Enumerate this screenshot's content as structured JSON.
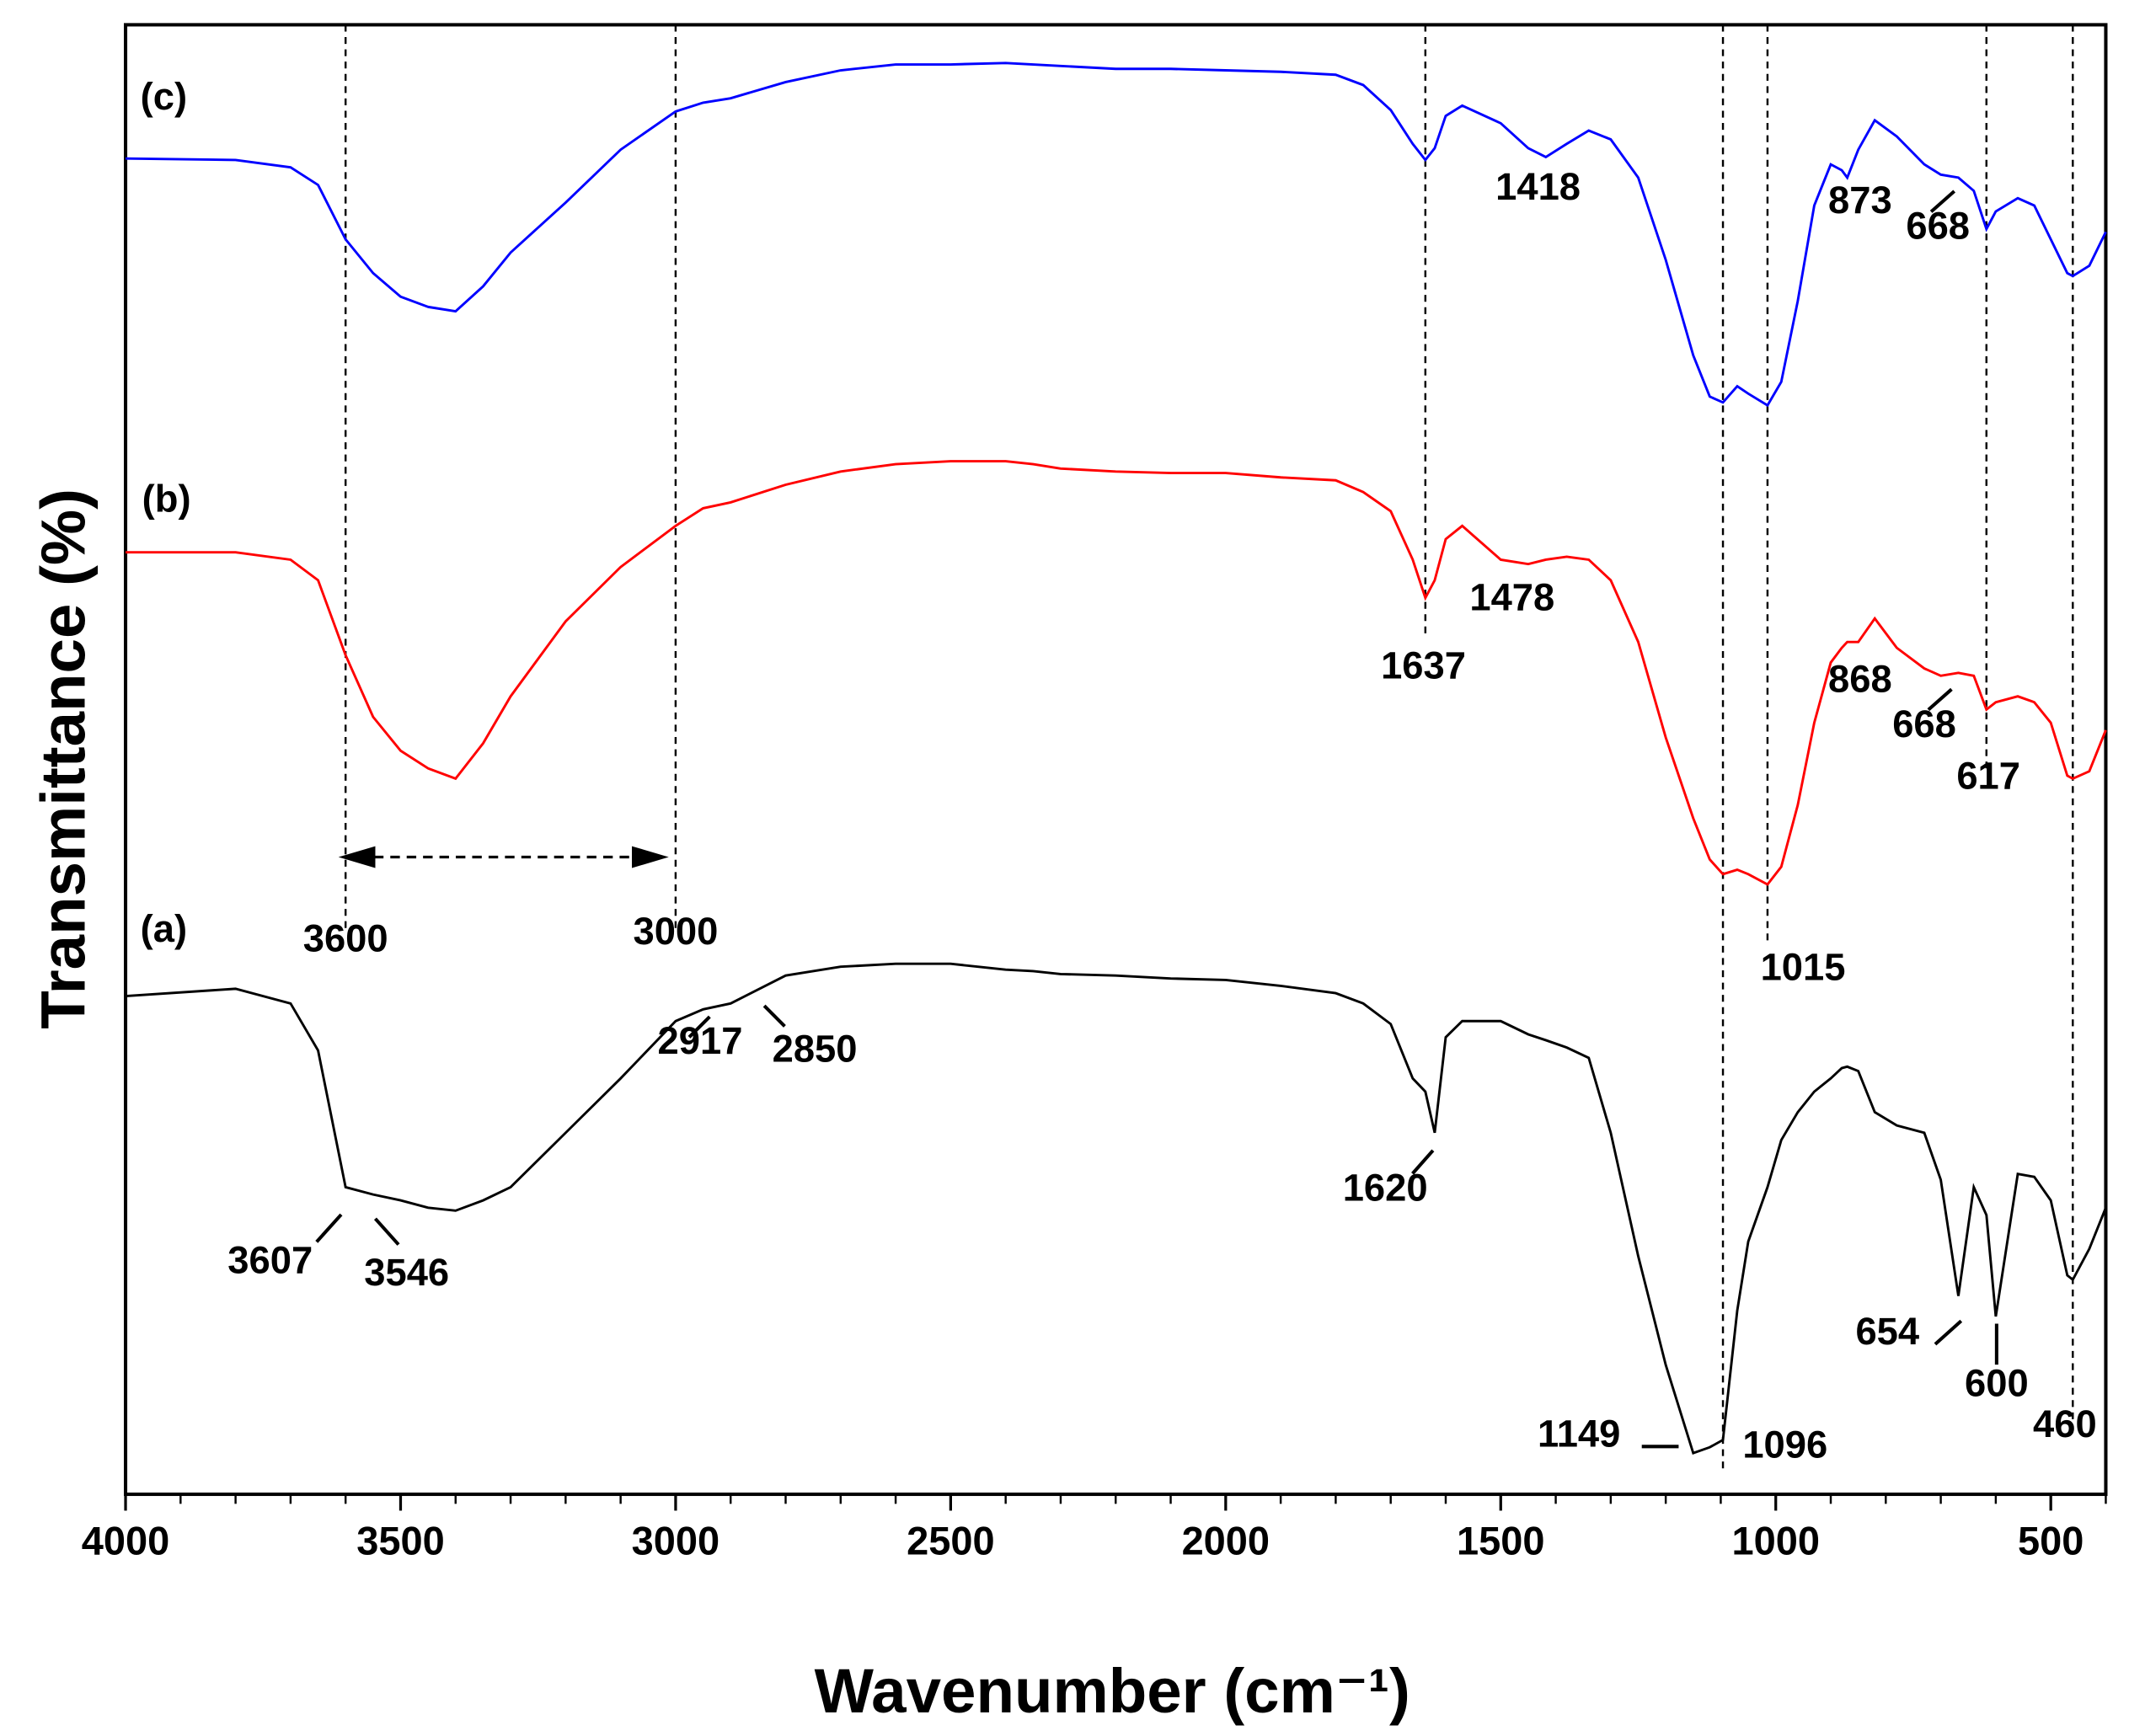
{
  "chart_data": {
    "type": "line",
    "xlabel": "Wavenumber (cm⁻¹)",
    "ylabel": "Transmittance (%)",
    "xlim": [
      4000,
      400
    ],
    "ylim": [
      0,
      100
    ],
    "xticks": [
      4000,
      3500,
      3000,
      2500,
      2000,
      1500,
      1000,
      500
    ],
    "x": [
      4000,
      3800,
      3700,
      3650,
      3600,
      3550,
      3500,
      3450,
      3400,
      3350,
      3300,
      3200,
      3100,
      3000,
      2950,
      2900,
      2800,
      2700,
      2600,
      2500,
      2400,
      2350,
      2300,
      2200,
      2100,
      2000,
      1900,
      1800,
      1750,
      1700,
      1660,
      1637,
      1620,
      1600,
      1570,
      1500,
      1450,
      1418,
      1380,
      1340,
      1300,
      1250,
      1200,
      1150,
      1120,
      1096,
      1070,
      1050,
      1015,
      990,
      960,
      930,
      900,
      880,
      870,
      850,
      820,
      780,
      730,
      700,
      668,
      640,
      617,
      600,
      560,
      530,
      500,
      470,
      460,
      430,
      400
    ],
    "series": [
      {
        "name": "(a)",
        "color": "#000000",
        "values": [
          33.9,
          34.4,
          33.4,
          30.2,
          20.9,
          20.4,
          20.0,
          19.5,
          19.3,
          20.0,
          20.9,
          24.6,
          28.3,
          32.2,
          33.0,
          33.4,
          35.3,
          35.9,
          36.1,
          36.1,
          35.7,
          35.6,
          35.4,
          35.3,
          35.1,
          35.0,
          34.6,
          34.1,
          33.4,
          32.0,
          28.3,
          27.4,
          24.6,
          31.1,
          32.2,
          32.2,
          31.3,
          30.9,
          30.4,
          29.7,
          24.6,
          16.2,
          8.8,
          2.8,
          3.2,
          3.7,
          12.5,
          17.2,
          20.9,
          24.1,
          26.0,
          27.4,
          28.3,
          29.0,
          29.1,
          28.8,
          26.0,
          25.1,
          24.6,
          21.4,
          13.5,
          20.9,
          19.0,
          12.1,
          21.8,
          21.6,
          20.0,
          14.9,
          14.6,
          16.7,
          19.5
        ],
        "peaks": [
          3607,
          3546,
          2917,
          2850,
          1620,
          1149,
          1096,
          654,
          600,
          460
        ]
      },
      {
        "name": "(b)",
        "color": "#ff0000",
        "values": [
          64.1,
          64.1,
          63.6,
          62.2,
          57.1,
          52.9,
          50.6,
          49.4,
          48.7,
          51.1,
          54.3,
          59.4,
          63.1,
          65.9,
          67.1,
          67.5,
          68.7,
          69.6,
          70.1,
          70.3,
          70.3,
          70.1,
          69.8,
          69.6,
          69.5,
          69.5,
          69.2,
          69.0,
          68.2,
          66.9,
          63.6,
          61.0,
          62.2,
          65.0,
          65.9,
          63.6,
          63.3,
          63.6,
          63.8,
          63.6,
          62.2,
          58.0,
          51.5,
          46.0,
          43.2,
          42.2,
          42.5,
          42.2,
          41.5,
          42.7,
          46.9,
          52.5,
          56.6,
          57.6,
          58.0,
          58.0,
          59.6,
          57.6,
          56.2,
          55.7,
          55.9,
          55.7,
          53.4,
          53.9,
          54.3,
          53.9,
          52.5,
          48.9,
          48.7,
          49.2,
          52.0
        ],
        "peaks": [
          1637,
          1478,
          868,
          668,
          617
        ]
      },
      {
        "name": "(c)",
        "color": "#0000ff",
        "values": [
          90.9,
          90.8,
          90.3,
          89.1,
          85.4,
          83.1,
          81.5,
          80.8,
          80.5,
          82.2,
          84.5,
          87.9,
          91.5,
          94.1,
          94.7,
          95.0,
          96.1,
          96.9,
          97.3,
          97.3,
          97.4,
          97.3,
          97.2,
          97.0,
          97.0,
          96.9,
          96.8,
          96.6,
          95.9,
          94.2,
          91.9,
          90.8,
          91.6,
          93.8,
          94.5,
          93.3,
          91.6,
          91.0,
          91.9,
          92.8,
          92.2,
          89.6,
          84.0,
          77.5,
          74.7,
          74.3,
          75.4,
          74.9,
          74.1,
          75.7,
          81.2,
          87.7,
          90.5,
          90.1,
          89.6,
          91.5,
          93.5,
          92.4,
          90.5,
          89.8,
          89.6,
          88.7,
          86.1,
          87.3,
          88.2,
          87.7,
          85.4,
          83.1,
          82.9,
          83.6,
          85.9
        ],
        "peaks": [
          1418,
          873,
          668
        ]
      }
    ],
    "guides": [
      3600,
      3000,
      1637,
      1096,
      1015,
      617,
      460
    ]
  }
}
